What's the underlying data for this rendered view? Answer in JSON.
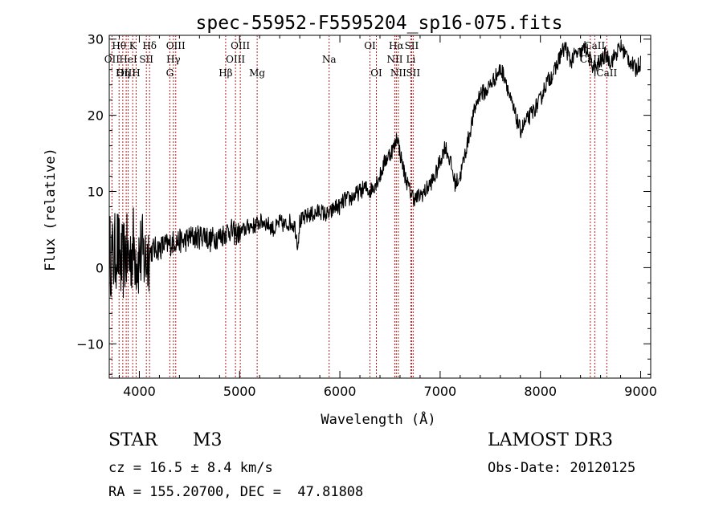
{
  "chart_data": {
    "type": "line",
    "title": "spec-55952-F5595204_sp16-075.fits",
    "xlabel": "Wavelength (Å)",
    "ylabel": "Flux (relative)",
    "xlim": [
      3700,
      9100
    ],
    "ylim": [
      -14.5,
      30.5
    ],
    "xticks": [
      4000,
      5000,
      6000,
      7000,
      8000,
      9000
    ],
    "yticks": [
      -10,
      0,
      10,
      20,
      30
    ],
    "series": [
      {
        "name": "flux",
        "x": [
          3700,
          3740,
          3780,
          3820,
          3860,
          3900,
          3940,
          3980,
          4020,
          4060,
          4100,
          4150,
          4200,
          4250,
          4300,
          4350,
          4400,
          4450,
          4500,
          4550,
          4600,
          4650,
          4700,
          4750,
          4800,
          4850,
          4900,
          4950,
          5000,
          5050,
          5100,
          5150,
          5200,
          5250,
          5300,
          5350,
          5400,
          5450,
          5500,
          5550,
          5580,
          5600,
          5650,
          5700,
          5750,
          5800,
          5850,
          5900,
          5950,
          6000,
          6050,
          6100,
          6150,
          6200,
          6250,
          6300,
          6350,
          6400,
          6450,
          6500,
          6550,
          6570,
          6600,
          6650,
          6700,
          6750,
          6800,
          6850,
          6900,
          6950,
          7000,
          7050,
          7100,
          7150,
          7200,
          7250,
          7300,
          7350,
          7400,
          7450,
          7500,
          7550,
          7600,
          7650,
          7700,
          7750,
          7800,
          7850,
          7900,
          7950,
          8000,
          8050,
          8100,
          8150,
          8200,
          8250,
          8300,
          8350,
          8400,
          8450,
          8500,
          8550,
          8600,
          8650,
          8700,
          8750,
          8800,
          8850,
          8900,
          8950,
          9000
        ],
        "y": [
          2,
          1,
          3,
          0,
          2,
          1,
          3,
          1,
          2,
          1,
          2,
          2.5,
          2.5,
          3,
          3,
          3.5,
          3.5,
          3.5,
          4,
          4,
          4,
          4.5,
          3.5,
          4,
          4,
          4.5,
          5,
          4.5,
          4.5,
          5,
          5.5,
          5.5,
          6,
          6,
          5.5,
          5,
          6,
          5.5,
          6,
          5.5,
          3,
          6,
          6.5,
          7,
          7,
          7.5,
          7,
          7,
          8,
          8,
          9,
          9,
          9.5,
          10,
          10.5,
          10,
          11,
          12,
          14,
          15,
          16,
          17.5,
          15,
          12,
          10,
          9,
          9.5,
          10,
          11,
          12,
          14,
          16,
          14,
          11,
          12,
          15,
          18,
          21,
          23,
          23,
          24,
          25,
          26,
          25,
          22,
          20,
          18,
          19,
          20,
          21,
          22,
          24,
          25,
          26,
          28,
          29,
          27,
          28,
          28,
          29,
          27,
          26,
          27,
          28,
          27,
          28,
          29,
          28,
          27,
          26,
          27
        ]
      }
    ],
    "lines": [
      {
        "label": "Hθ",
        "x": 3798,
        "row": 0
      },
      {
        "label": "OII",
        "x": 3727,
        "row": 1
      },
      {
        "label": "OIII",
        "x": 3869,
        "row": 2
      },
      {
        "label": "K",
        "x": 3934,
        "row": 0
      },
      {
        "label": "HeI",
        "x": 3889,
        "row": 1
      },
      {
        "label": "Hη",
        "x": 3835,
        "row": 2
      },
      {
        "label": "Hδ",
        "x": 4102,
        "row": 0
      },
      {
        "label": "SII",
        "x": 4070,
        "row": 1
      },
      {
        "label": "H",
        "x": 3968,
        "row": 2
      },
      {
        "label": "OIII",
        "x": 4363,
        "row": 0
      },
      {
        "label": "Hγ",
        "x": 4340,
        "row": 1
      },
      {
        "label": "G",
        "x": 4304,
        "row": 2
      },
      {
        "label": "OIII",
        "x": 5007,
        "row": 0
      },
      {
        "label": "OIII",
        "x": 4959,
        "row": 1
      },
      {
        "label": "Hβ",
        "x": 4861,
        "row": 2
      },
      {
        "label": "Mg",
        "x": 5175,
        "row": 2
      },
      {
        "label": "Na",
        "x": 5893,
        "row": 1
      },
      {
        "label": "OI",
        "x": 6300,
        "row": 0
      },
      {
        "label": "OI",
        "x": 6364,
        "row": 2
      },
      {
        "label": "Hα",
        "x": 6563,
        "row": 0
      },
      {
        "label": "SII",
        "x": 6716,
        "row": 0
      },
      {
        "label": "NII",
        "x": 6548,
        "row": 1
      },
      {
        "label": "Li",
        "x": 6708,
        "row": 1
      },
      {
        "label": "NII",
        "x": 6583,
        "row": 2
      },
      {
        "label": "SII",
        "x": 6731,
        "row": 2
      },
      {
        "label": "CaII",
        "x": 8542,
        "row": 0
      },
      {
        "label": "CaII",
        "x": 8498,
        "row": 1
      },
      {
        "label": "CaII",
        "x": 8662,
        "row": 2
      }
    ]
  },
  "info": {
    "obj_class": "STAR",
    "subclass": "M3",
    "survey": "LAMOST DR3",
    "cz": "cz = 16.5 ± 8.4 km/s",
    "obs_date": "Obs-Date: 20120125",
    "radec": "RA = 155.20700, DEC =  47.81808"
  }
}
